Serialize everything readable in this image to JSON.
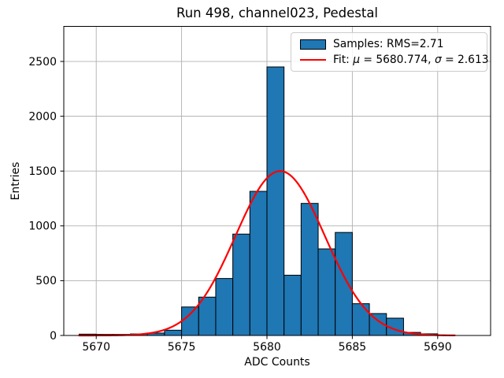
{
  "colors": {
    "bar_fill": "#1f77b4",
    "bar_edge": "#000000",
    "fit_line": "#ff0000",
    "grid": "#b0b0b0",
    "spine": "#000000",
    "legend_border": "#cccccc",
    "background": "#ffffff"
  },
  "legend": {
    "samples_label": "Samples: RMS=2.71",
    "fit_prefix": "Fit: ",
    "fit_mu_symbol": "μ",
    "fit_mu_rest": " = 5680.774, ",
    "fit_sigma_symbol": "σ",
    "fit_sigma_rest": " = 2.613"
  },
  "chart_data": {
    "type": "bar",
    "subtype": "histogram",
    "title": "Run 498, channel023, Pedestal",
    "xlabel": "ADC Counts",
    "ylabel": "Entries",
    "grid": true,
    "legend_position": "upper right",
    "bin_start": 5669,
    "bin_width": 1,
    "counts": [
      12,
      10,
      10,
      14,
      22,
      48,
      260,
      350,
      520,
      925,
      1315,
      2450,
      550,
      1205,
      790,
      940,
      290,
      200,
      158,
      28,
      15
    ],
    "x_ticks": [
      5670,
      5675,
      5680,
      5685,
      5690
    ],
    "y_ticks": [
      0,
      500,
      1000,
      1500,
      2000,
      2500
    ],
    "xlim": [
      5668.1,
      5693.1
    ],
    "ylim": [
      0,
      2820
    ],
    "series": [
      {
        "name": "Samples: RMS=2.71",
        "kind": "histogram",
        "color": "#1f77b4"
      },
      {
        "name": "Fit: μ = 5680.774, σ = 2.613",
        "kind": "gaussian-fit",
        "color": "#ff0000",
        "mu": 5680.774,
        "sigma": 2.613,
        "amplitude": 1500,
        "x_start": 5669,
        "x_end": 5691
      }
    ],
    "stats": {
      "rms": 2.71,
      "fit_mu": 5680.774,
      "fit_sigma": 2.613
    }
  }
}
